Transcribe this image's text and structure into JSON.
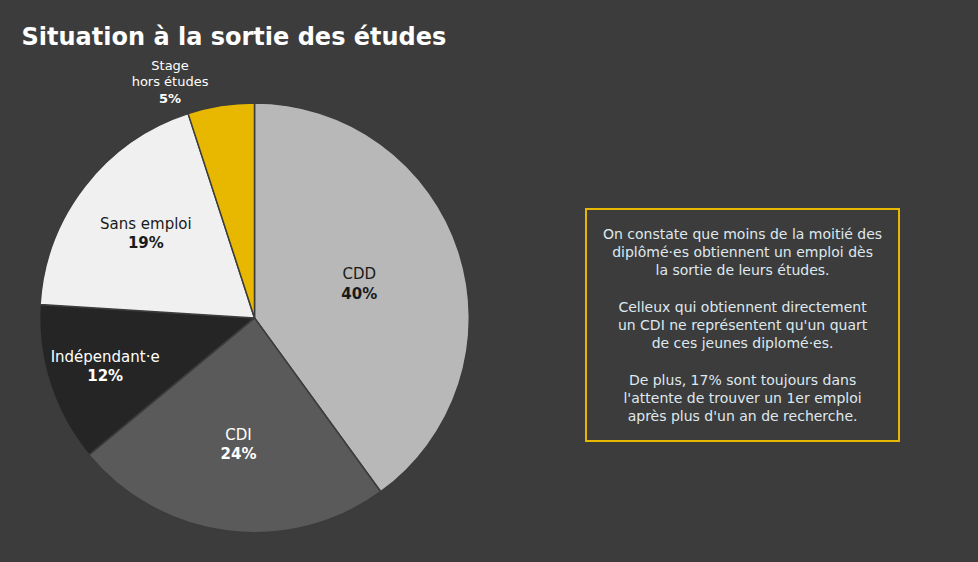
{
  "chart_data": {
    "type": "pie",
    "title": "Situation à la sortie des études",
    "categories": [
      "CDD",
      "CDI",
      "Indépendant·e",
      "Sans emploi",
      "Stage\nhors études"
    ],
    "values": [
      40,
      24,
      12,
      19,
      5
    ],
    "value_labels": [
      "40%",
      "24%",
      "12%",
      "19%",
      "5%"
    ],
    "colors": [
      "#b8b8b8",
      "#5a5a5a",
      "#252525",
      "#f0f0f0",
      "#e8b800"
    ],
    "data_labels": true,
    "legend": false,
    "annotations": [
      "On constate que moins de la moitié des\ndiplômé·es obtiennent un emploi dès\nla sortie de leurs études.",
      "Celleux qui obtiennent directement\nun CDI ne représentent qu'un quart\nde ces jeunes diplomé·es.",
      "De plus, 17% sont toujours dans\nl'attente de trouver un 1er emploi\naprès plus d'un an de recherche."
    ]
  }
}
